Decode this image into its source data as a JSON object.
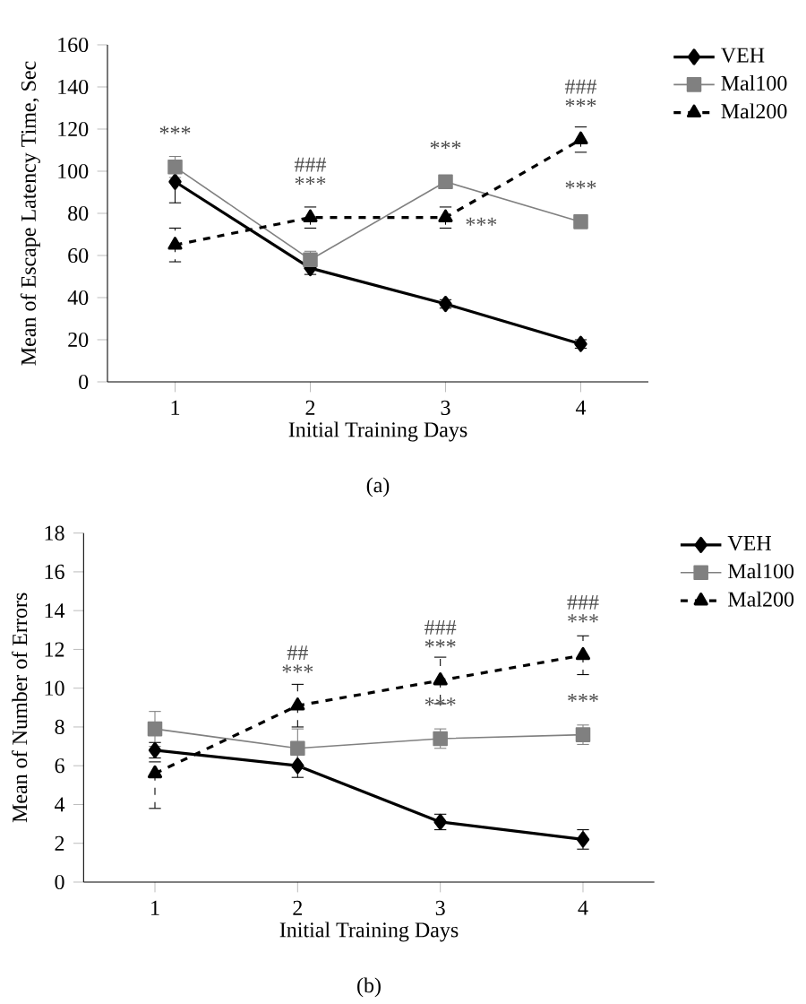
{
  "chart_data": [
    {
      "type": "line",
      "title": "(a)",
      "xlabel": "Initial Training Days",
      "ylabel": "Mean of Escape Latency Time, Sec",
      "categories": [
        "1",
        "2",
        "3",
        "4"
      ],
      "ylim": [
        0,
        160
      ],
      "yticks": [
        0,
        20,
        40,
        60,
        80,
        100,
        120,
        140,
        160
      ],
      "legend": "top right",
      "series": [
        {
          "name": "VEH",
          "color": "#000000",
          "values": [
            95,
            54,
            37,
            18
          ],
          "errors": [
            10,
            3,
            2,
            2
          ],
          "marker": "diamond",
          "line_style": "solid"
        },
        {
          "name": "Mal100",
          "color": "#808080",
          "values": [
            102,
            58,
            95,
            76
          ],
          "errors": [
            5,
            4,
            3,
            2
          ],
          "marker": "square",
          "line_style": "solid"
        },
        {
          "name": "Mal200",
          "color": "#000000",
          "values": [
            65,
            78,
            78,
            115
          ],
          "errors": [
            8,
            5,
            5,
            6
          ],
          "marker": "triangle",
          "line_style": "dashed"
        }
      ],
      "annotations": [
        {
          "text": "***",
          "x": "1",
          "y": 102
        },
        {
          "text": "***",
          "x": "2",
          "y": 78
        },
        {
          "text": "###",
          "x": "2",
          "y": 78
        },
        {
          "text": "***",
          "x": "3",
          "y": 95
        },
        {
          "text": "***",
          "x": "3",
          "y": 78
        },
        {
          "text": "***",
          "x": "4",
          "y": 115
        },
        {
          "text": "###",
          "x": "4",
          "y": 115
        },
        {
          "text": "***",
          "x": "4",
          "y": 76
        }
      ]
    },
    {
      "type": "line",
      "title": "(b)",
      "xlabel": "Initial Training Days",
      "ylabel": "Mean of Number of Errors",
      "categories": [
        "1",
        "2",
        "3",
        "4"
      ],
      "ylim": [
        0,
        18
      ],
      "yticks": [
        0,
        2,
        4,
        6,
        8,
        10,
        12,
        14,
        16,
        18
      ],
      "legend": "top right",
      "series": [
        {
          "name": "VEH",
          "color": "#000000",
          "values": [
            6.8,
            6.0,
            3.1,
            2.2
          ],
          "errors": [
            0.4,
            0.6,
            0.4,
            0.5
          ],
          "marker": "diamond",
          "line_style": "solid"
        },
        {
          "name": "Mal100",
          "color": "#808080",
          "values": [
            7.9,
            6.9,
            7.4,
            7.6
          ],
          "errors": [
            0.9,
            1.0,
            0.5,
            0.5
          ],
          "marker": "square",
          "line_style": "solid"
        },
        {
          "name": "Mal200",
          "color": "#000000",
          "values": [
            5.6,
            9.1,
            10.4,
            11.7
          ],
          "errors": [
            [
              3.8,
              6.2
            ],
            1.1,
            1.2,
            1.0
          ],
          "marker": "triangle",
          "line_style": "dashed"
        }
      ],
      "annotations": [
        {
          "text": "***",
          "x": "2",
          "y": 9.1
        },
        {
          "text": "##",
          "x": "2",
          "y": 9.1
        },
        {
          "text": "***",
          "x": "3",
          "y": 10.4
        },
        {
          "text": "###",
          "x": "3",
          "y": 10.4
        },
        {
          "text": "***",
          "x": "3",
          "y": 7.4
        },
        {
          "text": "***",
          "x": "4",
          "y": 11.7
        },
        {
          "text": "###",
          "x": "4",
          "y": 11.7
        },
        {
          "text": "***",
          "x": "4",
          "y": 7.6
        }
      ]
    }
  ]
}
